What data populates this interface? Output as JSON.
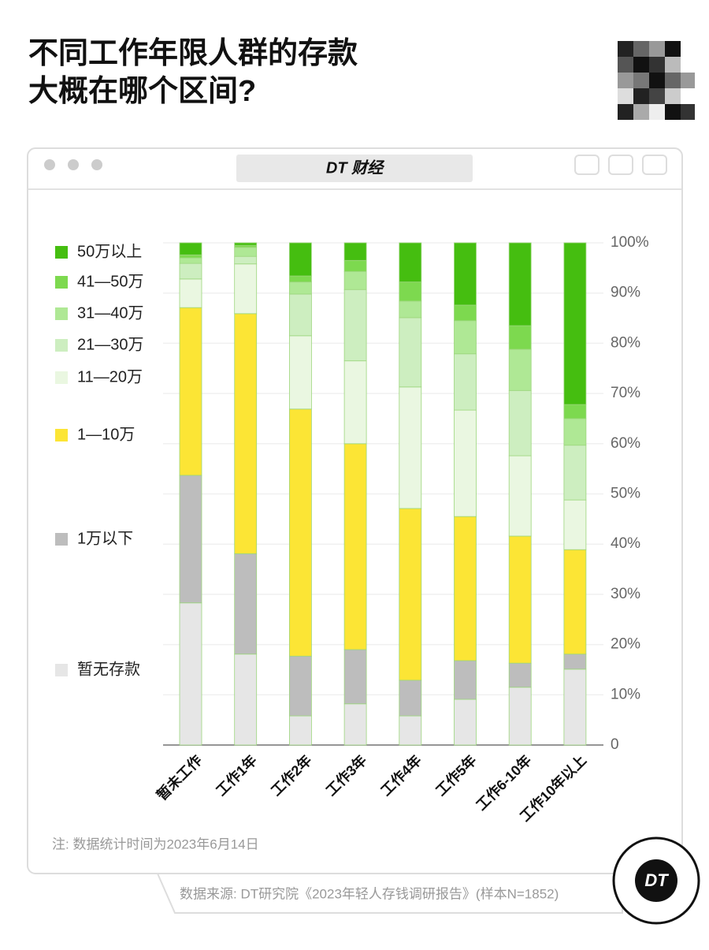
{
  "chart_data": {
    "type": "stacked_bar_percent",
    "title": [
      "不同工作年限人群的存款",
      "大概在哪个区间?"
    ],
    "brand": "DT 财经",
    "logo": "DT",
    "note": "注: 数据统计时间为2023年6月14日",
    "source": "数据来源: DT研究院《2023年轻人存钱调研报告》(样本N=1852)",
    "categories": [
      "暂未工作",
      "工作1年",
      "工作2年",
      "工作3年",
      "工作4年",
      "工作5年",
      "工作6-10年",
      "工作10年以上"
    ],
    "series": [
      {
        "name": "暂无存款",
        "color": "#e6e6e6",
        "values": [
          28.3,
          18.1,
          5.8,
          8.2,
          5.8,
          9.1,
          11.5,
          15.1
        ]
      },
      {
        "name": "1万以下",
        "color": "#bdbdbd",
        "values": [
          25.4,
          20.0,
          11.9,
          10.8,
          7.1,
          7.7,
          4.8,
          3.0
        ]
      },
      {
        "name": "1—10万",
        "color": "#fce535",
        "values": [
          33.4,
          47.8,
          49.2,
          41.0,
          34.2,
          28.7,
          25.3,
          20.8
        ]
      },
      {
        "name": "11—20万",
        "color": "#eaf7e1",
        "values": [
          5.7,
          9.9,
          14.6,
          16.5,
          24.2,
          21.2,
          16.0,
          9.9
        ]
      },
      {
        "name": "21—30万",
        "color": "#cdeec0",
        "values": [
          3.1,
          1.5,
          8.3,
          14.2,
          13.8,
          11.2,
          13.0,
          10.9
        ]
      },
      {
        "name": "31—40万",
        "color": "#afe895",
        "values": [
          1.1,
          1.8,
          2.4,
          3.6,
          3.3,
          6.6,
          8.2,
          5.3
        ]
      },
      {
        "name": "41—50万",
        "color": "#7dd94f",
        "values": [
          0.6,
          0.4,
          1.2,
          2.2,
          3.8,
          3.1,
          4.7,
          2.8
        ]
      },
      {
        "name": "50万以上",
        "color": "#45be10",
        "values": [
          2.4,
          0.5,
          6.6,
          3.5,
          7.8,
          12.4,
          16.5,
          32.2
        ]
      }
    ],
    "ylim": [
      0,
      100
    ],
    "yticks": [
      0,
      {
        "value": 10,
        "label": "10%"
      },
      {
        "value": 20,
        "label": "20%"
      },
      {
        "value": 30,
        "label": "30%"
      },
      {
        "value": 40,
        "label": "40%"
      },
      {
        "value": 50,
        "label": "50%"
      },
      {
        "value": 60,
        "label": "60%"
      },
      {
        "value": 70,
        "label": "70%"
      },
      {
        "value": 80,
        "label": "80%"
      },
      {
        "value": 90,
        "label": "90%"
      },
      {
        "value": 100,
        "label": "100%"
      }
    ],
    "grid": true
  }
}
